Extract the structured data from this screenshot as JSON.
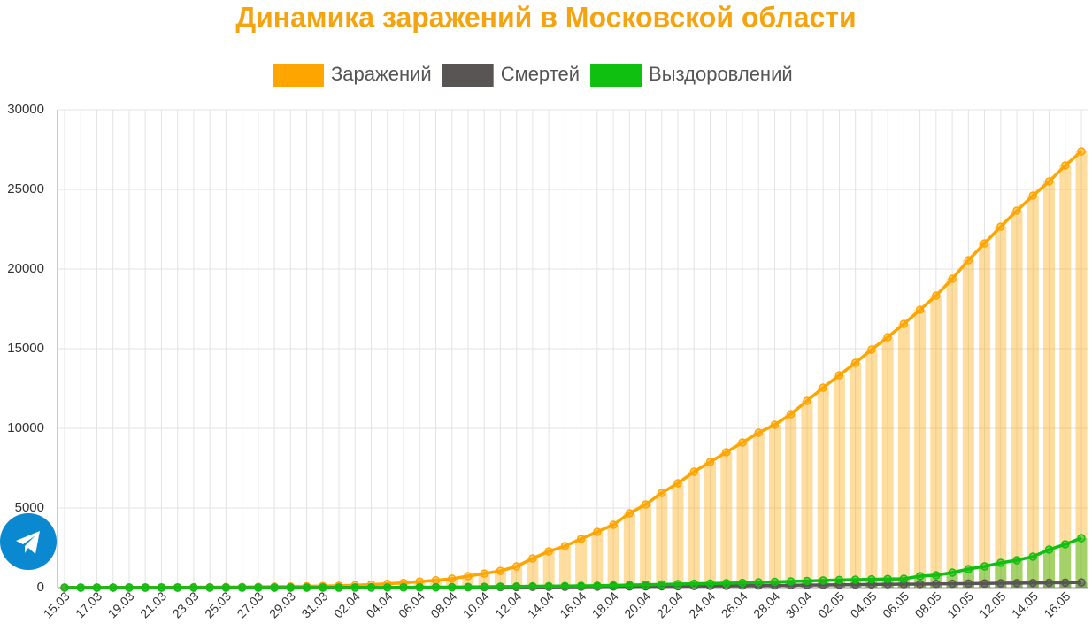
{
  "chart_data": {
    "type": "line",
    "title": "Динамика заражений в Московской области",
    "categories": [
      "15.03",
      null,
      "17.03",
      null,
      "19.03",
      null,
      "21.03",
      null,
      "23.03",
      null,
      "25.03",
      null,
      "27.03",
      null,
      "29.03",
      null,
      "31.03",
      null,
      "02.04",
      null,
      "04.04",
      null,
      "06.04",
      null,
      "08.04",
      null,
      "10.04",
      null,
      "12.04",
      null,
      "14.04",
      null,
      "16.04",
      null,
      "18.04",
      null,
      "20.04",
      null,
      "22.04",
      null,
      "24.04",
      null,
      "26.04",
      null,
      "28.04",
      null,
      "30.04",
      null,
      "02.05",
      null,
      "04.05",
      null,
      "06.05",
      null,
      "08.05",
      null,
      "10.05",
      null,
      "12.05",
      null,
      "14.05",
      null,
      "16.05",
      null
    ],
    "series": [
      {
        "name": "Заражений",
        "color": "#ffa500",
        "values": [
          5,
          5,
          8,
          10,
          12,
          15,
          18,
          20,
          25,
          30,
          35,
          40,
          50,
          60,
          70,
          80,
          100,
          120,
          150,
          190,
          240,
          300,
          380,
          460,
          560,
          720,
          880,
          1050,
          1330,
          1833,
          2280,
          2611,
          3055,
          3500,
          3944,
          4667,
          5222,
          5944,
          6555,
          7278,
          7889,
          8500,
          9111,
          9722,
          10222,
          10889,
          11722,
          12555,
          13333,
          14111,
          14944,
          15722,
          16555,
          17444,
          18333,
          19389,
          20555,
          21611,
          22666,
          23666,
          24611,
          25500,
          26500,
          27389
        ]
      },
      {
        "name": "Смертей",
        "color": "#5a5555",
        "values": [
          0,
          0,
          0,
          0,
          0,
          0,
          0,
          0,
          1,
          1,
          1,
          1,
          2,
          2,
          3,
          3,
          4,
          5,
          6,
          8,
          10,
          12,
          14,
          17,
          20,
          24,
          28,
          32,
          36,
          40,
          45,
          50,
          55,
          60,
          66,
          72,
          78,
          85,
          92,
          100,
          108,
          116,
          124,
          132,
          140,
          150,
          160,
          170,
          180,
          190,
          200,
          210,
          215,
          225,
          235,
          245,
          255,
          265,
          275,
          285,
          295,
          305,
          315,
          325
        ]
      },
      {
        "name": "Выздоровлений",
        "color": "#10c010",
        "values": [
          0,
          0,
          0,
          0,
          0,
          0,
          0,
          0,
          0,
          0,
          0,
          0,
          0,
          0,
          0,
          0,
          0,
          0,
          5,
          8,
          10,
          15,
          20,
          25,
          30,
          40,
          50,
          60,
          70,
          80,
          90,
          100,
          110,
          120,
          140,
          160,
          180,
          200,
          220,
          240,
          260,
          280,
          300,
          330,
          360,
          390,
          420,
          450,
          480,
          500,
          520,
          540,
          555,
          720,
          777,
          944,
          1166,
          1333,
          1555,
          1722,
          1944,
          2389,
          2722,
          3111
        ]
      }
    ],
    "ylim": [
      0,
      30000
    ],
    "yticks": [
      0,
      5000,
      10000,
      15000,
      20000,
      25000,
      30000
    ],
    "grid": true
  }
}
